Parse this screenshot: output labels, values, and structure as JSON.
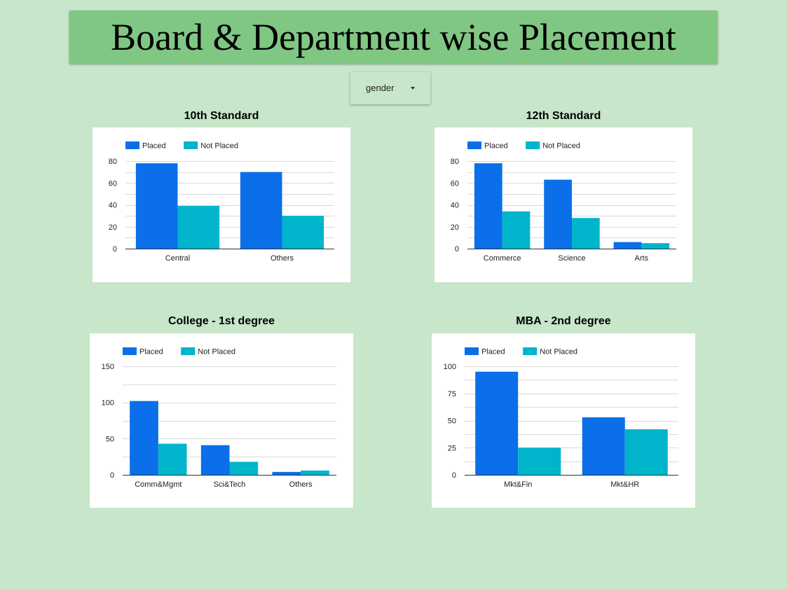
{
  "header": {
    "title": "Board & Department wise Placement"
  },
  "filter": {
    "label": "gender"
  },
  "colors": {
    "placed": "#0a6fe8",
    "not_placed": "#00b4cc",
    "background": "#c8e6c9",
    "header": "#81c784"
  },
  "chart_data": [
    {
      "type": "bar",
      "title": "10th Standard",
      "categories": [
        "Central",
        "Others"
      ],
      "series": [
        {
          "name": "Placed",
          "values": [
            78,
            70
          ]
        },
        {
          "name": "Not Placed",
          "values": [
            39,
            30
          ]
        }
      ],
      "yticks": [
        0,
        20,
        40,
        60,
        80
      ],
      "ylim": [
        0,
        80
      ],
      "legend": "top-left",
      "grid": true
    },
    {
      "type": "bar",
      "title": "12th Standard",
      "categories": [
        "Commerce",
        "Science",
        "Arts"
      ],
      "series": [
        {
          "name": "Placed",
          "values": [
            78,
            63,
            6
          ]
        },
        {
          "name": "Not Placed",
          "values": [
            34,
            28,
            5
          ]
        }
      ],
      "yticks": [
        0,
        20,
        40,
        60,
        80
      ],
      "ylim": [
        0,
        80
      ],
      "legend": "top-left",
      "grid": true
    },
    {
      "type": "bar",
      "title": "College - 1st degree",
      "categories": [
        "Comm&Mgmt",
        "Sci&Tech",
        "Others"
      ],
      "series": [
        {
          "name": "Placed",
          "values": [
            102,
            41,
            4
          ]
        },
        {
          "name": "Not Placed",
          "values": [
            43,
            18,
            6
          ]
        }
      ],
      "yticks": [
        0,
        50,
        100,
        150
      ],
      "ylim": [
        0,
        150
      ],
      "legend": "top-left",
      "grid": true
    },
    {
      "type": "bar",
      "title": "MBA - 2nd degree",
      "categories": [
        "Mkt&Fin",
        "Mkt&HR"
      ],
      "series": [
        {
          "name": "Placed",
          "values": [
            95,
            53
          ]
        },
        {
          "name": "Not Placed",
          "values": [
            25,
            42
          ]
        }
      ],
      "yticks": [
        0,
        25,
        50,
        75,
        100
      ],
      "ylim": [
        0,
        100
      ],
      "legend": "top-left",
      "grid": true
    }
  ]
}
